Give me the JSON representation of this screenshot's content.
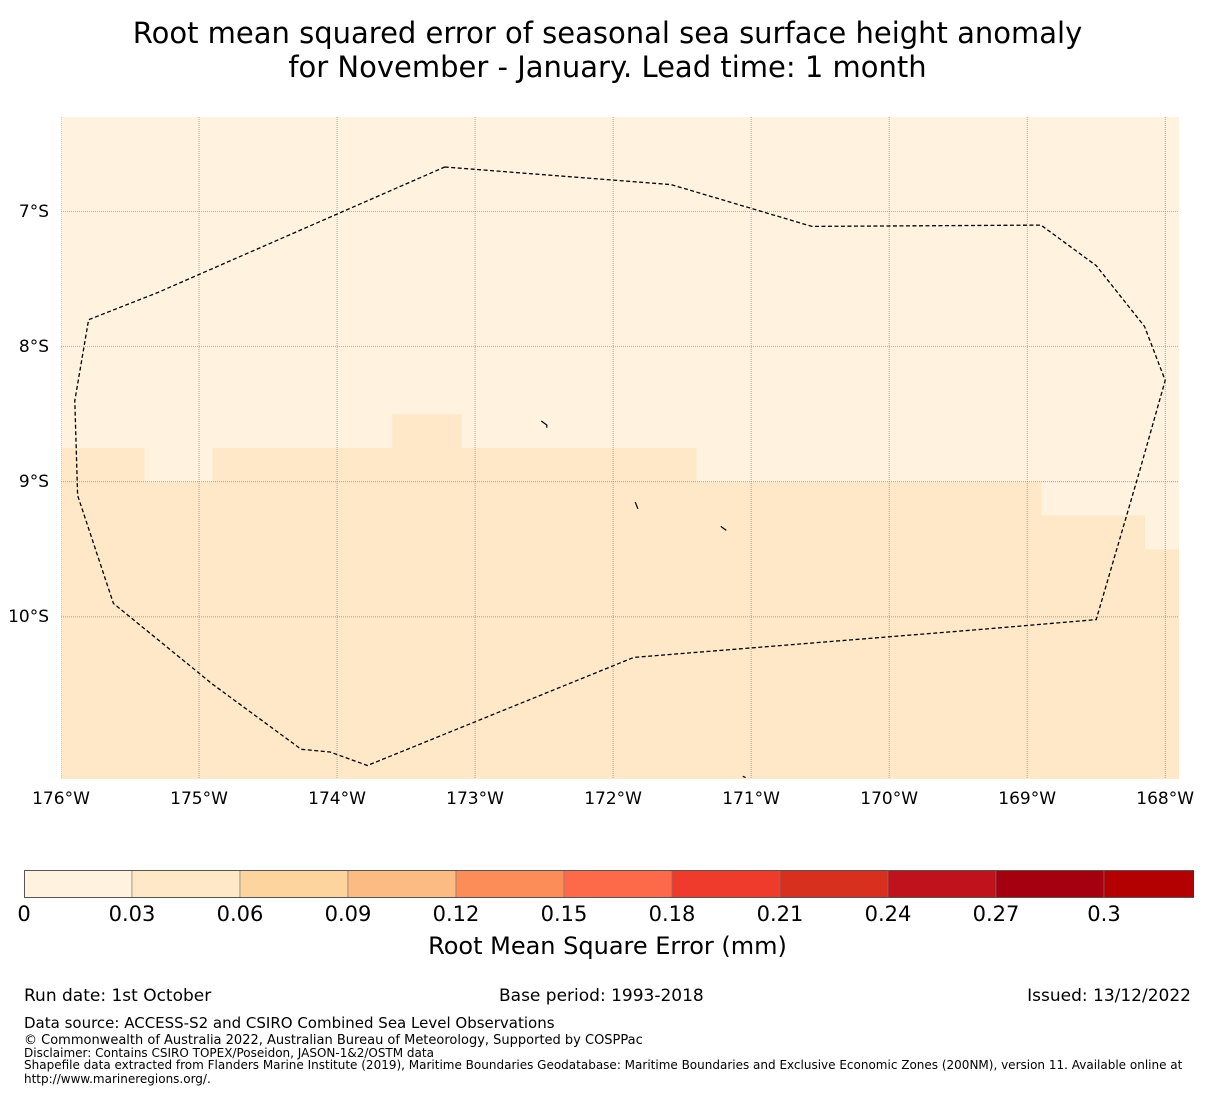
{
  "title": {
    "line1": "Root mean squared error of seasonal sea surface height anomaly",
    "line2": "for November - January. Lead time: 1 month"
  },
  "map": {
    "lon_range": [
      -176,
      -167.9
    ],
    "lat_range": [
      -11.2,
      -6.3
    ],
    "lat_ticks": [
      {
        "value": -7,
        "label": "7°S"
      },
      {
        "value": -8,
        "label": "8°S"
      },
      {
        "value": -9,
        "label": "9°S"
      },
      {
        "value": -10,
        "label": "10°S"
      }
    ],
    "lon_ticks": [
      {
        "value": -176,
        "label": "176°W"
      },
      {
        "value": -175,
        "label": "175°W"
      },
      {
        "value": -174,
        "label": "174°W"
      },
      {
        "value": -173,
        "label": "173°W"
      },
      {
        "value": -172,
        "label": "172°W"
      },
      {
        "value": -171,
        "label": "171°W"
      },
      {
        "value": -170,
        "label": "170°W"
      },
      {
        "value": -169,
        "label": "169°W"
      },
      {
        "value": -168,
        "label": "168°W"
      }
    ],
    "grid": true,
    "field_colors": {
      "low": "#fff2df",
      "mid": "#fee8c8"
    },
    "field_cells": [
      {
        "lon": [
          -176,
          -175.4
        ],
        "lat": [
          -11.2,
          -8.75
        ],
        "bin": "mid"
      },
      {
        "lon": [
          -175.4,
          -174.9
        ],
        "lat": [
          -11.2,
          -9.0
        ],
        "bin": "mid"
      },
      {
        "lon": [
          -174.9,
          -173.6
        ],
        "lat": [
          -11.2,
          -8.75
        ],
        "bin": "mid"
      },
      {
        "lon": [
          -173.6,
          -173.1
        ],
        "lat": [
          -11.2,
          -8.5
        ],
        "bin": "mid"
      },
      {
        "lon": [
          -173.1,
          -171.4
        ],
        "lat": [
          -11.2,
          -8.75
        ],
        "bin": "mid"
      },
      {
        "lon": [
          -171.4,
          -168.9
        ],
        "lat": [
          -11.2,
          -9.0
        ],
        "bin": "mid"
      },
      {
        "lon": [
          -168.9,
          -168.15
        ],
        "lat": [
          -11.2,
          -9.25
        ],
        "bin": "mid"
      },
      {
        "lon": [
          -168.15,
          -167.9
        ],
        "lat": [
          -11.2,
          -9.5
        ],
        "bin": "mid"
      }
    ],
    "eez_boundary": [
      [
        -173.22,
        -6.67
      ],
      [
        -171.58,
        -6.8
      ],
      [
        -170.56,
        -7.11
      ],
      [
        -168.9,
        -7.1
      ],
      [
        -168.5,
        -7.4
      ],
      [
        -168.15,
        -7.85
      ],
      [
        -168.0,
        -8.25
      ],
      [
        -168.18,
        -8.9
      ],
      [
        -168.5,
        -10.02
      ],
      [
        -169.3,
        -10.09
      ],
      [
        -171.85,
        -10.3
      ],
      [
        -173.78,
        -11.1
      ],
      [
        -174.05,
        -11.0
      ],
      [
        -174.26,
        -10.98
      ],
      [
        -174.9,
        -10.5
      ],
      [
        -175.62,
        -9.9
      ],
      [
        -175.88,
        -9.1
      ],
      [
        -175.9,
        -8.4
      ],
      [
        -175.8,
        -7.8
      ],
      [
        -175.3,
        -7.6
      ],
      [
        -173.22,
        -6.67
      ]
    ],
    "islands": [
      [
        [
          -172.52,
          -8.55
        ],
        [
          -172.48,
          -8.58
        ],
        [
          -172.48,
          -8.6
        ]
      ],
      [
        [
          -171.84,
          -9.15
        ],
        [
          -171.82,
          -9.2
        ]
      ],
      [
        [
          -171.22,
          -9.33
        ],
        [
          -171.18,
          -9.36
        ]
      ],
      [
        [
          -171.06,
          -11.18
        ],
        [
          -171.04,
          -11.19
        ]
      ]
    ]
  },
  "colorbar": {
    "label": "Root Mean Square Error (mm)",
    "bins": [
      "#fff2df",
      "#fee8c8",
      "#fdd49e",
      "#fdbb84",
      "#fc8d59",
      "#fc6a4a",
      "#ef3b2c",
      "#d7301f",
      "#c0121c",
      "#a40010",
      "#b30000"
    ],
    "over_color": "#7f0000",
    "tick_labels": [
      "0",
      "0.03",
      "0.06",
      "0.09",
      "0.12",
      "0.15",
      "0.18",
      "0.21",
      "0.24",
      "0.27",
      "0.3"
    ]
  },
  "footer": {
    "run_date": "Run date: 1st October",
    "base_period": "Base period: 1993-2018",
    "issued": "Issued: 13/12/2022",
    "data_source": "Data source: ACCESS-S2 and CSIRO Combined Sea Level Observations",
    "copyright": "© Commonwealth of Australia 2022, Australian Bureau of Meteorology, Supported by COSPPac",
    "disclaimer": "Disclaimer: Contains CSIRO TOPEX/Poseidon, JASON-1&2/OSTM data",
    "shapefile_line1": "Shapefile data extracted from Flanders Marine Institute (2019), Maritime Boundaries Geodatabase: Maritime Boundaries and Exclusive Economic Zones (200NM), version 11. Available online at",
    "shapefile_line2": "http://www.marineregions.org/."
  }
}
